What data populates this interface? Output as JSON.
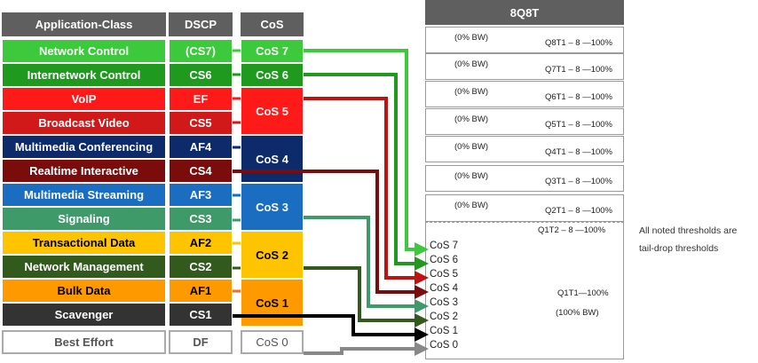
{
  "headers": {
    "app": "Application-Class",
    "dscp": "DSCP",
    "cos": "CoS",
    "queue": "8Q8T"
  },
  "classes": [
    {
      "name": "Network Control",
      "dscp": "(CS7)",
      "color": "#3cc93c",
      "text": "#ffffff"
    },
    {
      "name": "Internetwork Control",
      "dscp": "CS6",
      "color": "#1f9a1f",
      "text": "#ffffff"
    },
    {
      "name": "VoIP",
      "dscp": "EF",
      "color": "#ff1a1a",
      "text": "#ffffff"
    },
    {
      "name": "Broadcast Video",
      "dscp": "CS5",
      "color": "#d11919",
      "text": "#ffffff"
    },
    {
      "name": "Multimedia Conferencing",
      "dscp": "AF4",
      "color": "#0d2a6b",
      "text": "#ffffff"
    },
    {
      "name": "Realtime Interactive",
      "dscp": "CS4",
      "color": "#7a0c0c",
      "text": "#ffffff"
    },
    {
      "name": "Multimedia Streaming",
      "dscp": "AF3",
      "color": "#1a6dc0",
      "text": "#ffffff"
    },
    {
      "name": "Signaling",
      "dscp": "CS3",
      "color": "#3f9a6a",
      "text": "#ffffff"
    },
    {
      "name": "Transactional Data",
      "dscp": "AF2",
      "color": "#ffc400",
      "text": "#000000"
    },
    {
      "name": "Network Management",
      "dscp": "CS2",
      "color": "#335a1d",
      "text": "#ffffff"
    },
    {
      "name": "Bulk Data",
      "dscp": "AF1",
      "color": "#ff9900",
      "text": "#000000"
    },
    {
      "name": "Scavenger",
      "dscp": "CS1",
      "color": "#333333",
      "text": "#ffffff"
    },
    {
      "name": "Best Effort",
      "dscp": "DF",
      "color": "#ffffff",
      "text": "#555555"
    }
  ],
  "cos_groups": [
    {
      "label": "CoS 7",
      "color": "#3cc93c",
      "text": "#ffffff"
    },
    {
      "label": "CoS 6",
      "color": "#1f9a1f",
      "text": "#ffffff"
    },
    {
      "label": "CoS 5",
      "color": "#ff1a1a",
      "text": "#ffffff"
    },
    {
      "label": "CoS 4",
      "color": "#0d2a6b",
      "text": "#ffffff"
    },
    {
      "label": "CoS 3",
      "color": "#1a6dc0",
      "text": "#ffffff"
    },
    {
      "label": "CoS 2",
      "color": "#ffc400",
      "text": "#000000"
    },
    {
      "label": "CoS 1",
      "color": "#ff9900",
      "text": "#000000"
    },
    {
      "label": "CoS 0",
      "color": "#ffffff",
      "text": "#555555"
    }
  ],
  "queues": [
    {
      "bw": "(0% BW)",
      "label": "Q8T1 – 8 —100%"
    },
    {
      "bw": "(0% BW)",
      "label": "Q7T1 – 8 —100%"
    },
    {
      "bw": "(0% BW)",
      "label": "Q6T1 – 8 —100%"
    },
    {
      "bw": "(0% BW)",
      "label": "Q5T1 – 8 —100%"
    },
    {
      "bw": "(0% BW)",
      "label": "Q4T1 – 8 —100%"
    },
    {
      "bw": "(0% BW)",
      "label": "Q3T1 – 8 —100%"
    },
    {
      "bw": "(0% BW)",
      "label": "Q2T1 – 8 —100%"
    }
  ],
  "q1": {
    "t2": "Q1T2 – 8 —100%",
    "t1": "Q1T1—100%",
    "bw": "(100% BW)"
  },
  "q1_cos": [
    "CoS 7",
    "CoS 6",
    "CoS 5",
    "CoS 4",
    "CoS 3",
    "CoS 2",
    "CoS 1",
    "CoS 0"
  ],
  "note": {
    "line1": "All noted thresholds are",
    "line2": "tail-drop thresholds"
  },
  "arrow_colors": [
    "#3cc93c",
    "#1f9a1f",
    "#c11212",
    "#7a0c0c",
    "#3f9a6a",
    "#335a1d",
    "#000000",
    "#888888"
  ]
}
